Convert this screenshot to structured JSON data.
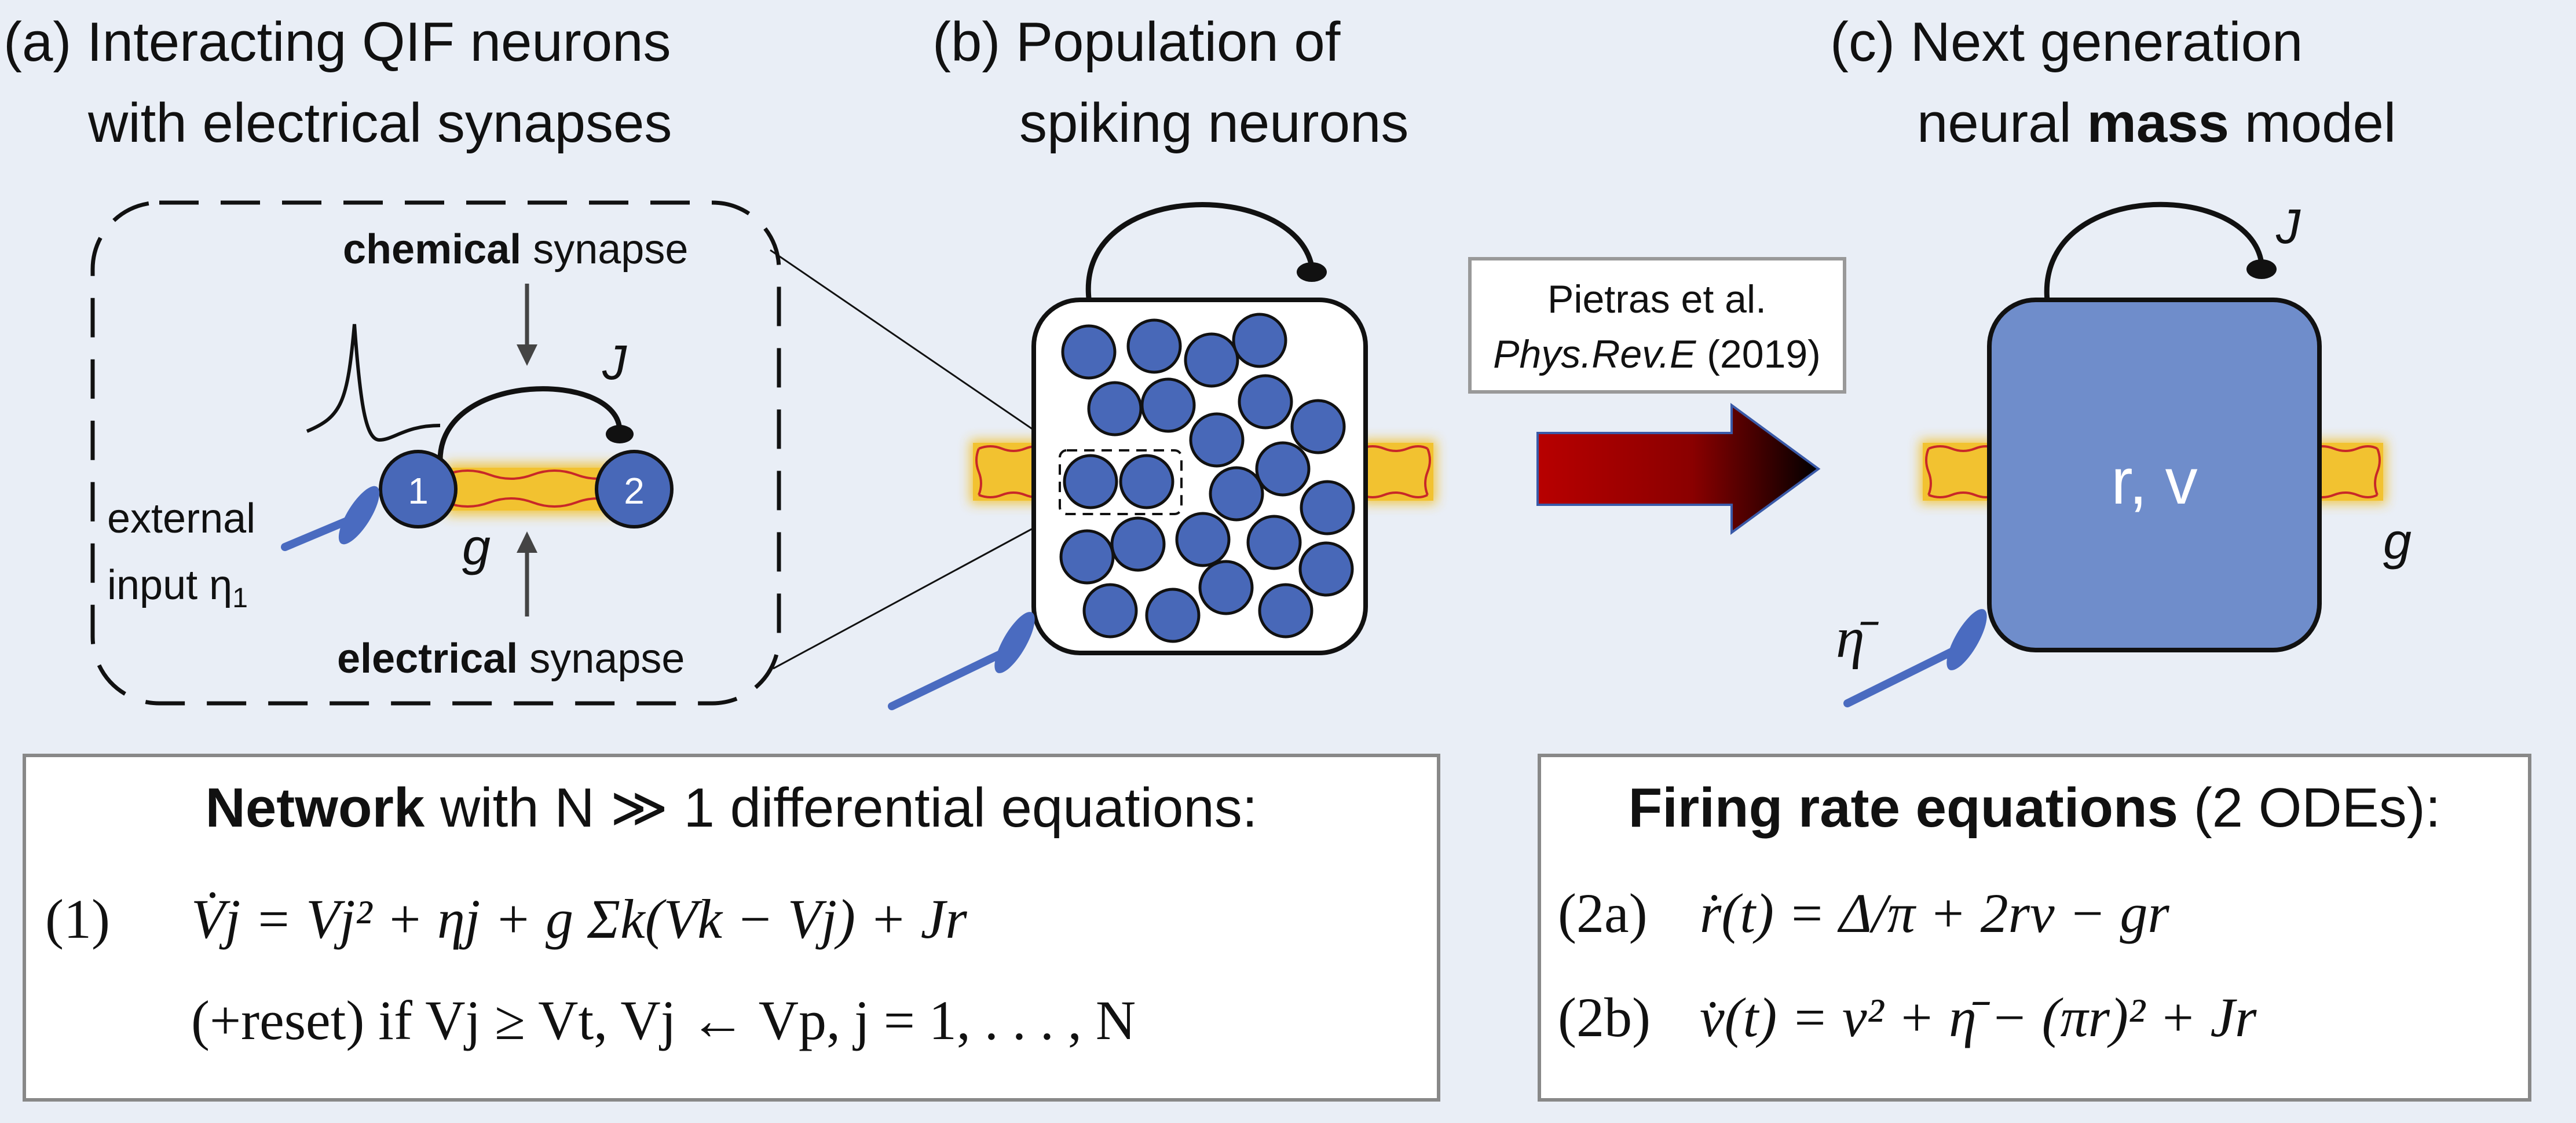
{
  "panels": {
    "a": {
      "title_line1": "(a) Interacting QIF neurons",
      "title_line2": "with electrical synapses",
      "chemical_bold": "chemical",
      "chemical_rest": " synapse",
      "electrical_bold": "electrical",
      "electrical_rest": " synapse",
      "j_label": "J",
      "g_label": "g",
      "neuron1": "1",
      "neuron2": "2",
      "external_line1": "external",
      "external_line2": "input η",
      "external_sub": "1"
    },
    "b": {
      "title_line1": "(b) Population of",
      "title_line2": "spiking neurons"
    },
    "c": {
      "title_line1": "(c) Next generation",
      "title_line2_pre": "neural ",
      "title_line2_bold": "mass",
      "title_line2_post": " model",
      "box_label": "r, v",
      "j_label": "J",
      "g_label": "g",
      "eta_label": "η̄"
    },
    "reference": {
      "line1": "Pietras et al.",
      "line2_italic": "Phys.Rev.E",
      "line2_rest": " (2019)"
    }
  },
  "network_box": {
    "title_bold": "Network",
    "title_rest": " with N ≫ 1 differential equations:",
    "eq1_number": "(1)",
    "eq1": "V̇j = Vj² + ηj + g Σk(Vk − Vj) + Jr",
    "eq1_cond": "(+reset) if Vj ≥ Vt, Vj ← Vp,     j = 1, . . . , N"
  },
  "firing_box": {
    "title_bold": "Firing rate equations",
    "title_rest": " (2 ODEs):",
    "eq2a_number": "(2a)",
    "eq2a": "ṙ(t) = Δ/π + 2rv − gr",
    "eq2b_number": "(2b)",
    "eq2b": "v̇(t) = v² + η̄ − (πr)² + Jr"
  },
  "colors": {
    "background": "#e9eef6",
    "neuron_fill": "#4868b8",
    "mass_box_fill": "#6f8dcb",
    "gap_junction": "#f2c230",
    "gap_wave": "#c82828",
    "input_line": "#4a6bc0",
    "arrow_dark": "#8a0000"
  },
  "icons": [
    "spike-icon",
    "synaptic-input-icon",
    "gap-junction-icon",
    "recurrent-connection-icon",
    "transformation-arrow-icon"
  ]
}
